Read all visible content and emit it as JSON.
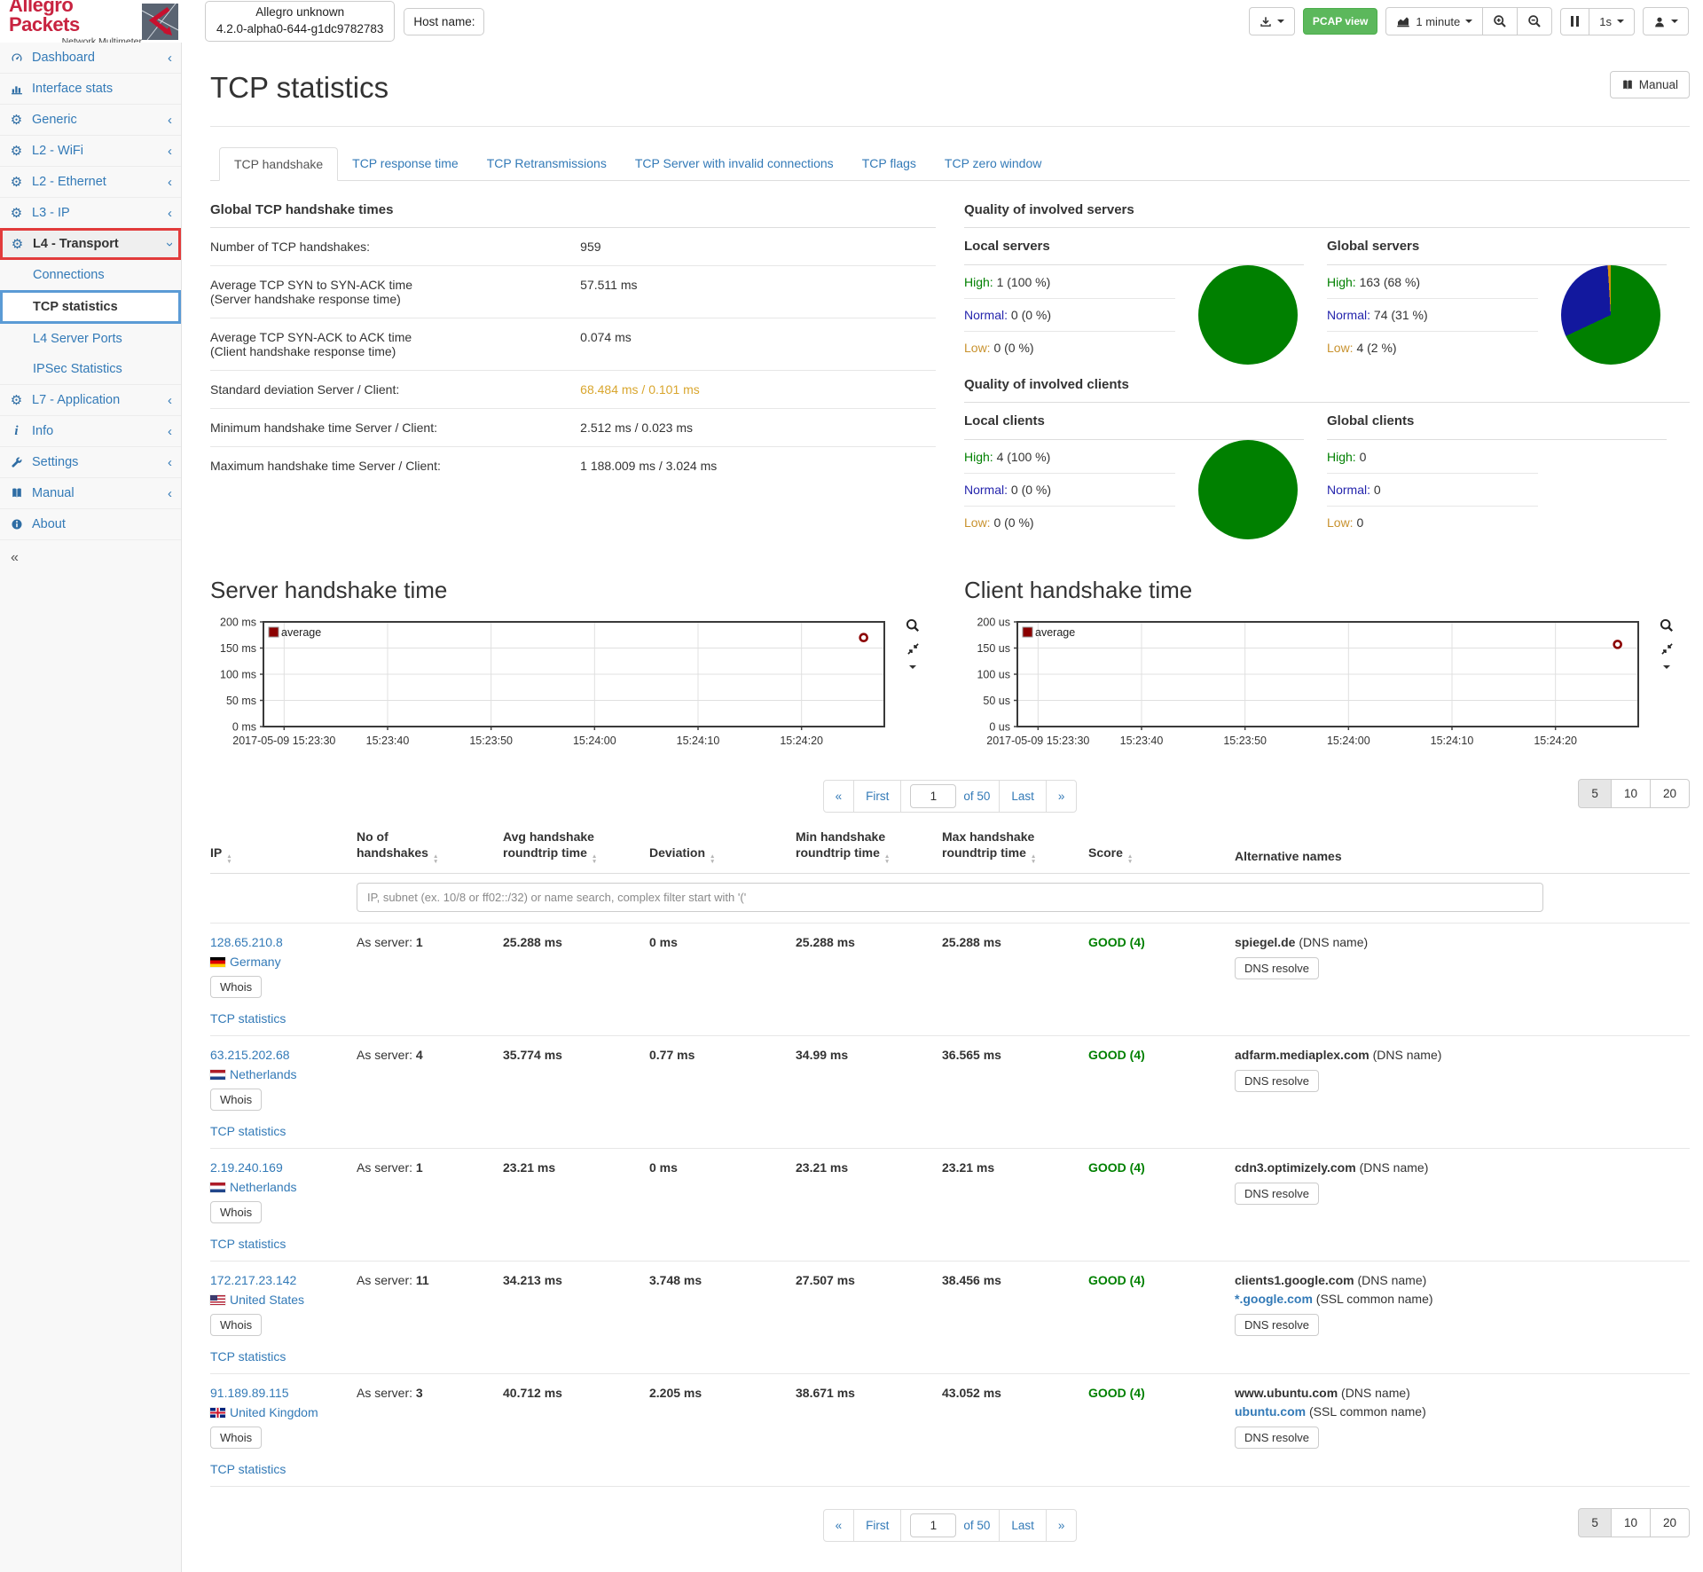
{
  "header": {
    "logo_title": "Allegro Packets",
    "logo_subtitle": "Network Multimeter",
    "version_line1": "Allegro unknown",
    "version_line2": "4.2.0-alpha0-644-g1dc9782783",
    "hostname_label": "Host name:",
    "pcap_button": "PCAP view",
    "interval_label": "1 minute",
    "rate_label": "1s"
  },
  "sidebar": {
    "items": [
      {
        "label": "Dashboard",
        "icon": "dashboard-icon",
        "chevron": "left"
      },
      {
        "label": "Interface stats",
        "icon": "bar-chart-icon",
        "chevron": null
      },
      {
        "label": "Generic",
        "icon": "gear-icon",
        "chevron": "left"
      },
      {
        "label": "L2 - WiFi",
        "icon": "gear-icon",
        "chevron": "left"
      },
      {
        "label": "L2 - Ethernet",
        "icon": "gear-icon",
        "chevron": "left"
      },
      {
        "label": "L3 - IP",
        "icon": "gear-icon",
        "chevron": "left"
      },
      {
        "label": "L4 - Transport",
        "icon": "gear-icon",
        "chevron": "down",
        "highlight": "red",
        "children": [
          {
            "label": "Connections"
          },
          {
            "label": "TCP statistics",
            "highlight": "blue"
          },
          {
            "label": "L4 Server Ports"
          },
          {
            "label": "IPSec Statistics"
          }
        ]
      },
      {
        "label": "L7 - Application",
        "icon": "gear-icon",
        "chevron": "left"
      },
      {
        "label": "Info",
        "icon": "info-icon",
        "chevron": "left"
      },
      {
        "label": "Settings",
        "icon": "wrench-icon",
        "chevron": "left"
      },
      {
        "label": "Manual",
        "icon": "book-icon",
        "chevron": "left"
      },
      {
        "label": "About",
        "icon": "about-icon",
        "chevron": null
      }
    ],
    "collapse_label": "«"
  },
  "page": {
    "title": "TCP statistics",
    "manual_button": "Manual"
  },
  "tabs": [
    "TCP handshake",
    "TCP response time",
    "TCP Retransmissions",
    "TCP Server with invalid connections",
    "TCP flags",
    "TCP zero window"
  ],
  "active_tab": 0,
  "global_times": {
    "title": "Global TCP handshake times",
    "rows": [
      {
        "label": "Number of TCP handshakes:",
        "sublabel": null,
        "value": "959",
        "highlight": false
      },
      {
        "label": "Average TCP SYN to SYN-ACK time",
        "sublabel": "(Server handshake response time)",
        "value": "57.511 ms",
        "highlight": false
      },
      {
        "label": "Average TCP SYN-ACK to ACK time",
        "sublabel": "(Client handshake response time)",
        "value": "0.074 ms",
        "highlight": false
      },
      {
        "label": "Standard deviation Server / Client:",
        "sublabel": null,
        "value": "68.484 ms / 0.101 ms",
        "highlight": true
      },
      {
        "label": "Minimum handshake time Server / Client:",
        "sublabel": null,
        "value": "2.512 ms / 0.023 ms",
        "highlight": false
      },
      {
        "label": "Maximum handshake time Server / Client:",
        "sublabel": null,
        "value": "1 188.009 ms / 3.024 ms",
        "highlight": false
      }
    ]
  },
  "labels": {
    "high": "High:",
    "normal": "Normal:",
    "low": "Low:"
  },
  "quality": {
    "servers": {
      "title": "Quality of involved servers",
      "local": {
        "title": "Local servers",
        "high": "1 (100 %)",
        "normal": "0 (0 %)",
        "low": "0 (0 %)",
        "pie": [
          100,
          0,
          0
        ]
      },
      "global": {
        "title": "Global servers",
        "high": "163 (68 %)",
        "normal": "74 (31 %)",
        "low": "4 (2 %)",
        "pie": [
          68,
          31,
          2
        ]
      }
    },
    "clients": {
      "title": "Quality of involved clients",
      "local": {
        "title": "Local clients",
        "high": "4 (100 %)",
        "normal": "0 (0 %)",
        "low": "0 (0 %)",
        "pie": [
          100,
          0,
          0
        ]
      },
      "global": {
        "title": "Global clients",
        "high": "0",
        "normal": "0",
        "low": "0",
        "pie": null
      }
    }
  },
  "colors": {
    "link": "#337ab7",
    "good": "#008000",
    "deviation": "#d9a62e",
    "pie": [
      "#008000",
      "#12189e",
      "#d4930c"
    ]
  },
  "chart_data": [
    {
      "type": "scatter",
      "title": "Server handshake time",
      "unit": "ms",
      "date": "2017-05-09",
      "ylim": [
        0,
        200
      ],
      "yticks": [
        0,
        50,
        100,
        150,
        200
      ],
      "xticks": [
        "15:23:30",
        "15:23:40",
        "15:23:50",
        "15:24:00",
        "15:24:10",
        "15:24:20"
      ],
      "grid": true,
      "legend_position": "top-left",
      "series": [
        {
          "name": "average",
          "color": "#8b0000",
          "points": [
            {
              "t": "15:24:26",
              "value": 170
            }
          ]
        }
      ]
    },
    {
      "type": "scatter",
      "title": "Client handshake time",
      "unit": "us",
      "date": "2017-05-09",
      "ylim": [
        0,
        200
      ],
      "yticks": [
        0,
        50,
        100,
        150,
        200
      ],
      "xticks": [
        "15:23:30",
        "15:23:40",
        "15:23:50",
        "15:24:00",
        "15:24:10",
        "15:24:20"
      ],
      "grid": true,
      "legend_position": "top-left",
      "series": [
        {
          "name": "average",
          "color": "#8b0000",
          "points": [
            {
              "t": "15:24:26",
              "value": 157
            }
          ]
        }
      ]
    }
  ],
  "pagination": {
    "prev": "«",
    "first": "First",
    "page": "1",
    "of": "of 50",
    "last": "Last",
    "next": "»",
    "sizes": [
      "5",
      "10",
      "20"
    ],
    "active_size": 0
  },
  "table": {
    "headers": [
      {
        "text": "IP",
        "sort": true
      },
      {
        "text": "No of\nhandshakes",
        "sort": true
      },
      {
        "text": "Avg handshake\nroundtrip time",
        "sort": true
      },
      {
        "text": "Deviation",
        "sort": true
      },
      {
        "text": "Min handshake\nroundtrip time",
        "sort": true
      },
      {
        "text": "Max handshake\nroundtrip time",
        "sort": true
      },
      {
        "text": "Score",
        "sort": true
      },
      {
        "text": "Alternative names",
        "sort": false
      }
    ],
    "filter_placeholder": "IP, subnet (ex. 10/8 or ff02::/32) or name search, complex filter start with '('",
    "as_server_label": "As server:",
    "whois_label": "Whois",
    "tcp_stats_label": "TCP statistics",
    "dns_resolve_label": "DNS resolve",
    "rows": [
      {
        "ip": "128.65.210.8",
        "flag": "de",
        "country": "Germany",
        "handshakes": "1",
        "avg": "25.288 ms",
        "deviation": "0 ms",
        "min": "25.288 ms",
        "max": "25.288 ms",
        "score": "GOOD (4)",
        "names": [
          {
            "name": "spiegel.de",
            "suffix": "(DNS name)",
            "link": false
          }
        ]
      },
      {
        "ip": "63.215.202.68",
        "flag": "nl",
        "country": "Netherlands",
        "handshakes": "4",
        "avg": "35.774 ms",
        "deviation": "0.77 ms",
        "min": "34.99 ms",
        "max": "36.565 ms",
        "score": "GOOD (4)",
        "names": [
          {
            "name": "adfarm.mediaplex.com",
            "suffix": "(DNS name)",
            "link": false
          }
        ]
      },
      {
        "ip": "2.19.240.169",
        "flag": "nl",
        "country": "Netherlands",
        "handshakes": "1",
        "avg": "23.21 ms",
        "deviation": "0 ms",
        "min": "23.21 ms",
        "max": "23.21 ms",
        "score": "GOOD (4)",
        "names": [
          {
            "name": "cdn3.optimizely.com",
            "suffix": "(DNS name)",
            "link": false
          }
        ]
      },
      {
        "ip": "172.217.23.142",
        "flag": "us",
        "country": "United States",
        "handshakes": "11",
        "avg": "34.213 ms",
        "deviation": "3.748 ms",
        "min": "27.507 ms",
        "max": "38.456 ms",
        "score": "GOOD (4)",
        "names": [
          {
            "name": "clients1.google.com",
            "suffix": "(DNS name)",
            "link": false
          },
          {
            "name": "*.google.com",
            "suffix": "(SSL common name)",
            "link": true
          }
        ]
      },
      {
        "ip": "91.189.89.115",
        "flag": "gb",
        "country": "United Kingdom",
        "handshakes": "3",
        "avg": "40.712 ms",
        "deviation": "2.205 ms",
        "min": "38.671 ms",
        "max": "43.052 ms",
        "score": "GOOD (4)",
        "names": [
          {
            "name": "www.ubuntu.com",
            "suffix": "(DNS name)",
            "link": false
          },
          {
            "name": "ubuntu.com",
            "suffix": "(SSL common name)",
            "link": true
          }
        ]
      }
    ]
  }
}
